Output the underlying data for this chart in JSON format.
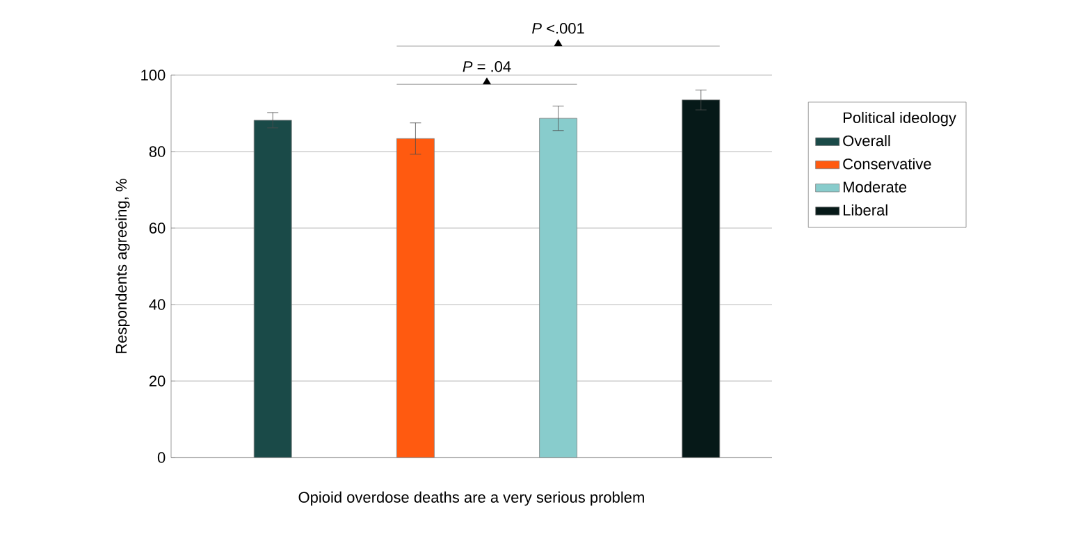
{
  "chart_data": {
    "type": "bar",
    "xlabel": "Opioid overdose deaths are a very serious problem",
    "ylabel": "Respondents agreeing, %",
    "legend_title": "Political ideology",
    "categories": [
      null
    ],
    "series": [
      {
        "name": "Overall",
        "color": "#1a4a48",
        "values": [
          88.2
        ],
        "errors": [
          2.0
        ]
      },
      {
        "name": "Conservative",
        "color": "#ff5a10",
        "values": [
          83.4
        ],
        "errors": [
          4.1
        ]
      },
      {
        "name": "Moderate",
        "color": "#88cccc",
        "values": [
          88.7
        ],
        "errors": [
          3.2
        ]
      },
      {
        "name": "Liberal",
        "color": "#061918",
        "values": [
          93.5
        ],
        "errors": [
          2.6
        ]
      }
    ],
    "ylim": [
      0,
      100
    ],
    "yticks": [
      0,
      20,
      40,
      60,
      80,
      100
    ],
    "grid": "y",
    "legend": "right",
    "annotations": [
      "*P* = .04",
      "*P* <.001"
    ]
  }
}
